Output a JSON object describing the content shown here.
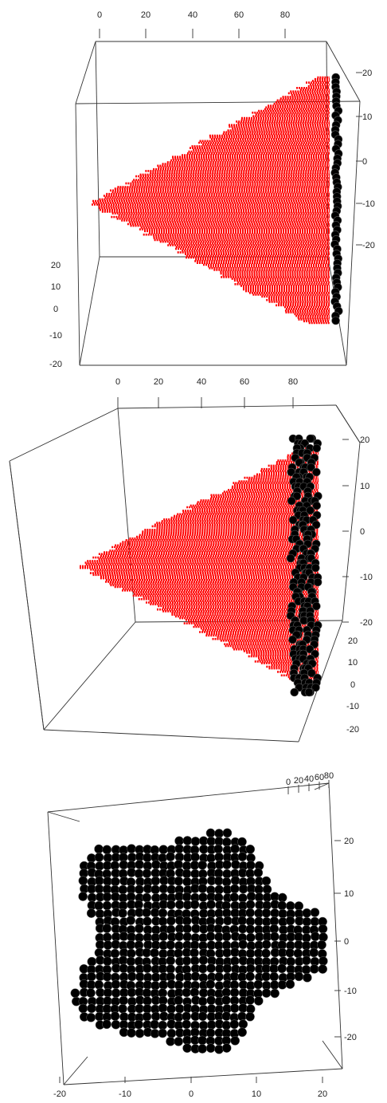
{
  "chart_data": [
    {
      "type": "scatter",
      "title": "",
      "xlabel": "",
      "ylabel": "",
      "zlabel": "",
      "view": "perspective-side",
      "box": true,
      "axes": {
        "x": {
          "ticks": [
            0,
            20,
            40,
            60,
            80
          ],
          "range": [
            -5,
            95
          ]
        },
        "y": {
          "ticks": [
            20,
            10,
            0,
            -10,
            -20
          ],
          "range": [
            -25,
            25
          ]
        },
        "z": {
          "ticks": [
            20,
            10,
            0,
            -10,
            -20
          ],
          "range": [
            -25,
            25
          ]
        }
      },
      "series": [
        {
          "color": "#ff0000",
          "marker": "small-point",
          "shape": "cone",
          "x_range": [
            0,
            95
          ],
          "apex": [
            0,
            -9
          ],
          "base_halfwidth_y": 24
        },
        {
          "color": "#000000",
          "marker": "sphere",
          "shape": "end-slab",
          "x": 95,
          "y_range": [
            -22,
            23
          ],
          "z_range": [
            -22,
            23
          ]
        }
      ]
    },
    {
      "type": "scatter",
      "title": "",
      "xlabel": "",
      "ylabel": "",
      "zlabel": "",
      "view": "perspective-oblique",
      "box": true,
      "axes": {
        "x": {
          "ticks": [
            0,
            20,
            40,
            60,
            80
          ],
          "range": [
            -5,
            95
          ]
        },
        "y": {
          "ticks": [
            20,
            10,
            0,
            -10,
            -20
          ],
          "range": [
            -25,
            25
          ]
        },
        "z": {
          "ticks": [
            20,
            10,
            0,
            -10,
            -20
          ],
          "range": [
            -25,
            25
          ]
        }
      },
      "series": [
        {
          "color": "#ff0000",
          "marker": "small-point",
          "shape": "cone",
          "x_range": [
            0,
            95
          ],
          "apex": [
            0,
            -9
          ],
          "base_halfwidth_y": 24
        },
        {
          "color": "#000000",
          "marker": "sphere",
          "shape": "end-slab",
          "x": 95,
          "y_range": [
            -22,
            23
          ],
          "z_range": [
            -22,
            23
          ]
        }
      ]
    },
    {
      "type": "scatter",
      "title": "",
      "xlabel": "",
      "ylabel": "",
      "zlabel": "",
      "view": "end-on",
      "box": true,
      "axes": {
        "x": {
          "ticks": [
            0,
            20,
            40,
            60,
            80
          ],
          "range": [
            -5,
            95
          ]
        },
        "y": {
          "ticks": [
            20,
            10,
            0,
            -10,
            -20
          ],
          "range": [
            -25,
            25
          ]
        },
        "z": {
          "ticks": [
            -20,
            -10,
            0,
            10,
            20
          ],
          "range": [
            -25,
            25
          ]
        }
      },
      "series": [
        {
          "color": "#000000",
          "marker": "sphere",
          "shape": "end-slab",
          "x": 95,
          "y_range": [
            -22,
            23
          ],
          "z_range": [
            -22,
            23
          ]
        }
      ]
    }
  ]
}
